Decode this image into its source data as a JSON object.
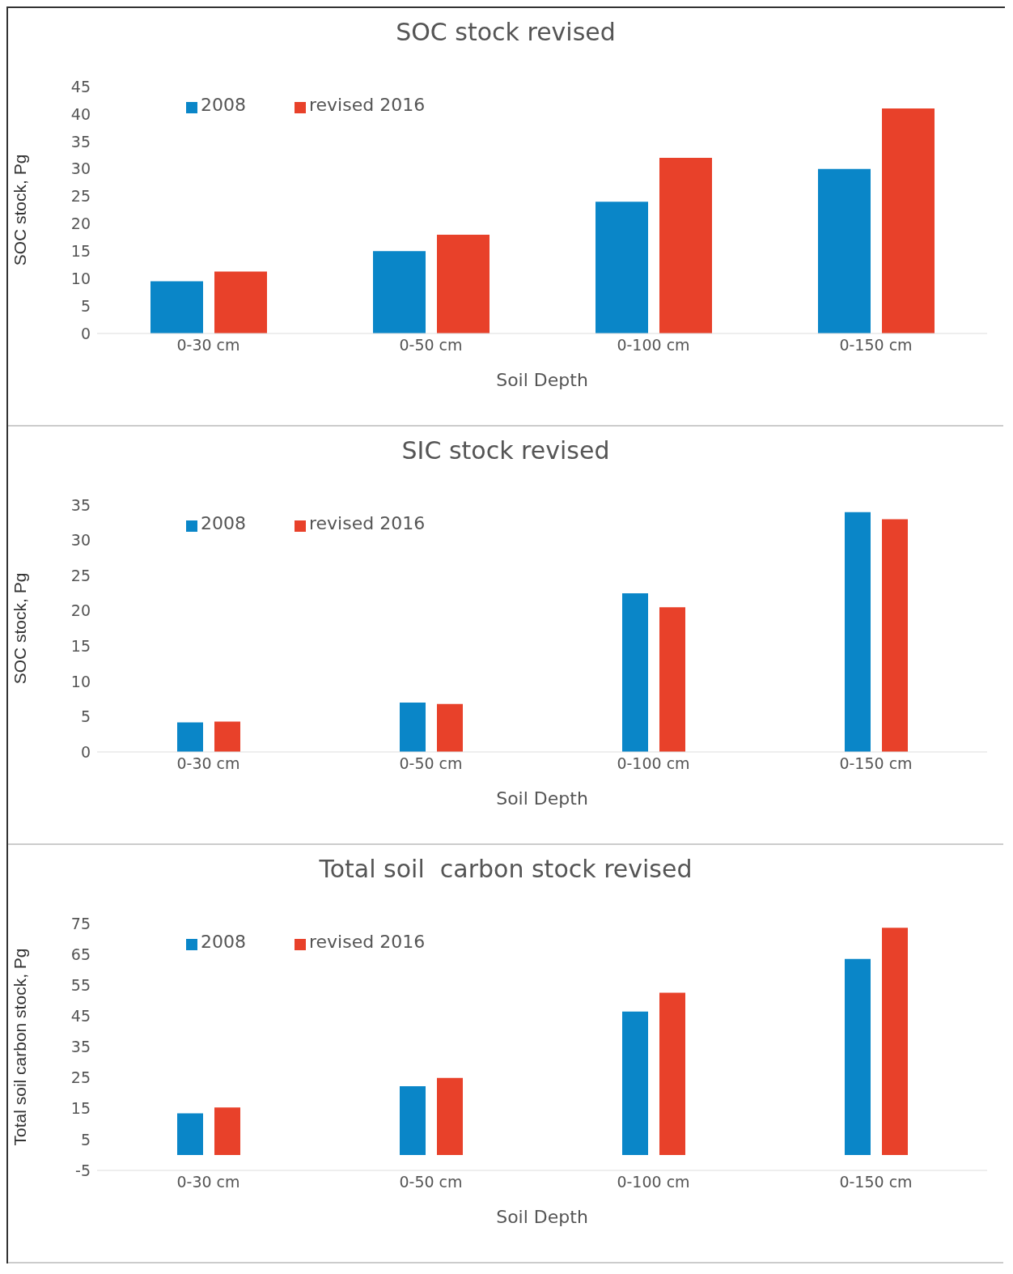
{
  "chart_data": [
    {
      "type": "bar",
      "title": "SOC stock revised",
      "xlabel": "Soil Depth",
      "ylabel": "SOC stock, Pg",
      "categories": [
        "0-30 cm",
        "0-50 cm",
        "0-100 cm",
        "0-150 cm"
      ],
      "series": [
        {
          "name": "2008",
          "color": "#0a86c8",
          "values": [
            9.5,
            15,
            24,
            30
          ]
        },
        {
          "name": "revised 2016",
          "color": "#e8412a",
          "values": [
            11.3,
            18,
            32,
            41
          ]
        }
      ],
      "ylim": [
        0,
        45
      ],
      "yticks": [
        0,
        5,
        10,
        15,
        20,
        25,
        30,
        35,
        40,
        45
      ],
      "legend": "top left"
    },
    {
      "type": "bar",
      "title": "SIC stock revised",
      "xlabel": "Soil Depth",
      "ylabel": "SOC stock, Pg",
      "categories": [
        "0-30 cm",
        "0-50 cm",
        "0-100 cm",
        "0-150 cm"
      ],
      "series": [
        {
          "name": "2008",
          "color": "#0a86c8",
          "values": [
            4.2,
            7,
            22.5,
            34
          ]
        },
        {
          "name": "revised 2016",
          "color": "#e8412a",
          "values": [
            4.3,
            6.8,
            20.5,
            33
          ]
        }
      ],
      "ylim": [
        0,
        35
      ],
      "yticks": [
        0,
        5,
        10,
        15,
        20,
        25,
        30,
        35
      ],
      "legend": "top left"
    },
    {
      "type": "bar",
      "title": "Total soil  carbon stock revised",
      "xlabel": "Soil Depth",
      "ylabel": "Total soil carbon stock, Pg",
      "categories": [
        "0-30 cm",
        "0-50 cm",
        "0-100 cm",
        "0-150 cm"
      ],
      "series": [
        {
          "name": "2008",
          "color": "#0a86c8",
          "values": [
            13.5,
            22.3,
            46.5,
            63.5
          ]
        },
        {
          "name": "revised 2016",
          "color": "#e8412a",
          "values": [
            15.4,
            25,
            52.6,
            73.6
          ]
        }
      ],
      "ylim": [
        -5,
        75
      ],
      "yticks": [
        -5,
        5,
        15,
        25,
        35,
        45,
        55,
        65,
        75
      ],
      "legend": "top left"
    }
  ]
}
